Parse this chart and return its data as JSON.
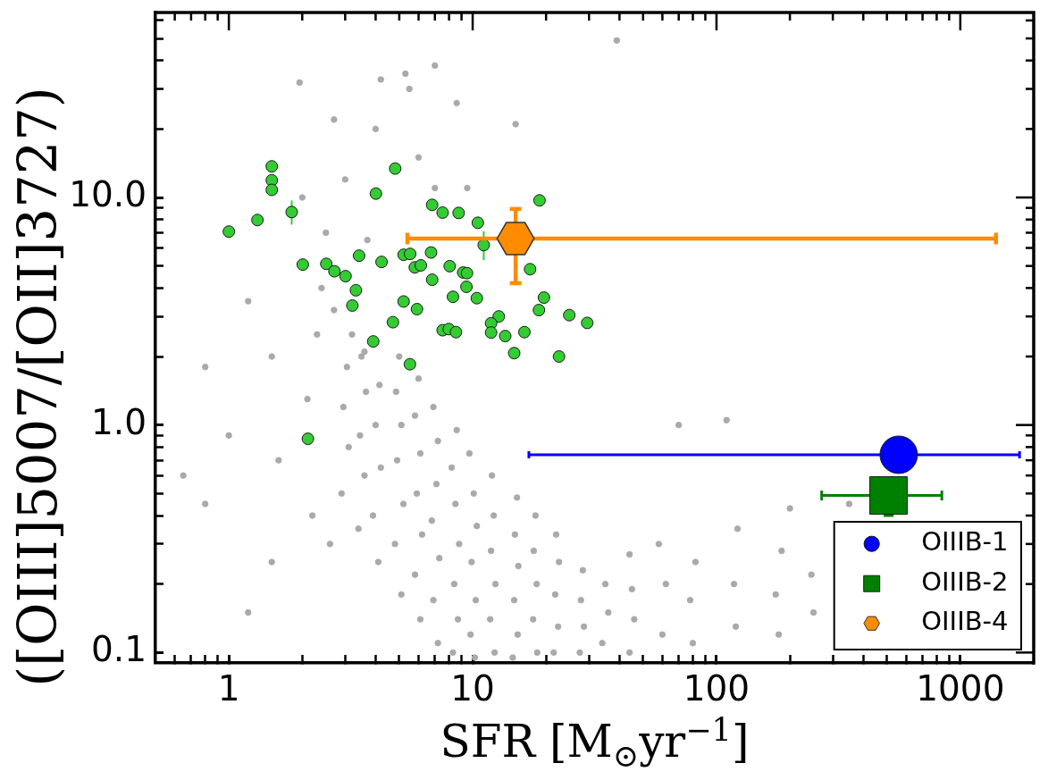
{
  "chart_data": {
    "type": "scatter",
    "xlabel": "SFR [M$_{⊙}$yr$^{−1}$]",
    "ylabel": "([OIII]5007/[OII]3727)",
    "log": "xy",
    "xlim": [
      0.5,
      2000
    ],
    "ylim": [
      0.09,
      65
    ],
    "legend": "bottom right",
    "xticks": [
      {
        "value": 0.6,
        "label": null
      },
      {
        "value": 0.7,
        "label": null
      },
      {
        "value": 0.8,
        "label": null
      },
      {
        "value": 0.9,
        "label": null
      },
      1,
      {
        "value": 2,
        "label": null
      },
      {
        "value": 3,
        "label": null
      },
      {
        "value": 4,
        "label": null
      },
      {
        "value": 5,
        "label": null
      },
      {
        "value": 6,
        "label": null
      },
      {
        "value": 7,
        "label": null
      },
      {
        "value": 8,
        "label": null
      },
      {
        "value": 9,
        "label": null
      },
      10,
      {
        "value": 20,
        "label": null
      },
      {
        "value": 30,
        "label": null
      },
      {
        "value": 40,
        "label": null
      },
      {
        "value": 50,
        "label": null
      },
      {
        "value": 60,
        "label": null
      },
      {
        "value": 70,
        "label": null
      },
      {
        "value": 80,
        "label": null
      },
      {
        "value": 90,
        "label": null
      },
      100,
      {
        "value": 200,
        "label": null
      },
      {
        "value": 300,
        "label": null
      },
      {
        "value": 400,
        "label": null
      },
      {
        "value": 500,
        "label": null
      },
      {
        "value": 600,
        "label": null
      },
      {
        "value": 700,
        "label": null
      },
      {
        "value": 800,
        "label": null
      },
      {
        "value": 900,
        "label": null
      },
      1000
    ],
    "yticks": [
      0.1,
      {
        "value": 0.2,
        "label": null
      },
      {
        "value": 0.3,
        "label": null
      },
      {
        "value": 0.4,
        "label": null
      },
      {
        "value": 0.5,
        "label": null
      },
      {
        "value": 0.6,
        "label": null
      },
      {
        "value": 0.7,
        "label": null
      },
      {
        "value": 0.8,
        "label": null
      },
      {
        "value": 0.9,
        "label": null
      },
      {
        "value": 1,
        "label": "1.0"
      },
      {
        "value": 2,
        "label": null
      },
      {
        "value": 3,
        "label": null
      },
      {
        "value": 4,
        "label": null
      },
      {
        "value": 5,
        "label": null
      },
      {
        "value": 6,
        "label": null
      },
      {
        "value": 7,
        "label": null
      },
      {
        "value": 8,
        "label": null
      },
      {
        "value": 9,
        "label": null
      },
      {
        "value": 10,
        "label": "10.0"
      },
      {
        "value": 20,
        "label": null
      },
      {
        "value": 30,
        "label": null
      },
      {
        "value": 40,
        "label": null
      },
      {
        "value": 50,
        "label": null
      },
      {
        "value": 60,
        "label": null
      }
    ],
    "series": [
      {
        "color": "#aaaaaa",
        "marker": "circle",
        "x": [
          2.9,
          3.1,
          2.95,
          3.05,
          3.2,
          3.4,
          3.6,
          3.45,
          3.65,
          3.5,
          4.1,
          3.9,
          4.2,
          4.0,
          4.15,
          3.6,
          5.1,
          4.8,
          5.2,
          4.9,
          5.1,
          4.85,
          5.0,
          6.1,
          5.8,
          6.2,
          5.9,
          6.1,
          5.8,
          6.0,
          7.2,
          6.9,
          7.3,
          6.8,
          7.1,
          7.2,
          6.9,
          8.3,
          8.7,
          8.4,
          8.8,
          8.5,
          8.2,
          8.6,
          10.2,
          9.8,
          10.3,
          9.9,
          10.4,
          10.1,
          9.7,
          12.3,
          11.8,
          12.4,
          11.9,
          12.2,
          12.0,
          14.6,
          15.3,
          14.8,
          15.4,
          14.9,
          15.2,
          18.4,
          17.7,
          18.3,
          17.8,
          18.1,
          21.5,
          22.4,
          21.8,
          22.6,
          22.0,
          27.5,
          28.6,
          27.8,
          28.3,
          34,
          36,
          35,
          44,
          46,
          45,
          44,
          2.2,
          2.1,
          2.3,
          2.4,
          2.6,
          2.7,
          1.5,
          1.6,
          1.5,
          1.2,
          1.2,
          0.8,
          0.8,
          0.65,
          1.0,
          60,
          62,
          58,
          80,
          78,
          82,
          120,
          118,
          122,
          180,
          175,
          185,
          250,
          245,
          200,
          350,
          70,
          110,
          2.5,
          3,
          4,
          5.5,
          6,
          7,
          9.5,
          3.7,
          2,
          1.95,
          7,
          4.2,
          5.3,
          15,
          8.6,
          2.7,
          39
        ],
        "values": [
          0.5,
          0.8,
          1.2,
          1.8,
          2.5,
          0.35,
          0.6,
          0.9,
          1.4,
          2.0,
          0.25,
          0.4,
          0.65,
          1.0,
          1.5,
          2.1,
          0.18,
          0.3,
          0.45,
          0.7,
          1.0,
          1.4,
          2.0,
          0.14,
          0.22,
          0.33,
          0.5,
          0.75,
          1.1,
          1.6,
          0.11,
          0.17,
          0.26,
          0.38,
          0.55,
          0.85,
          1.2,
          0.1,
          0.14,
          0.2,
          0.3,
          0.45,
          0.65,
          0.95,
          0.095,
          0.12,
          0.17,
          0.25,
          0.36,
          0.5,
          0.75,
          0.1,
          0.14,
          0.2,
          0.28,
          0.4,
          0.6,
          0.095,
          0.12,
          0.17,
          0.24,
          0.33,
          0.48,
          0.1,
          0.14,
          0.2,
          0.28,
          0.4,
          0.1,
          0.13,
          0.18,
          0.25,
          0.33,
          0.1,
          0.13,
          0.17,
          0.23,
          0.11,
          0.15,
          0.2,
          0.1,
          0.14,
          0.19,
          0.27,
          0.4,
          1.3,
          2.5,
          4,
          0.3,
          3.2,
          0.25,
          0.7,
          2,
          0.15,
          3.5,
          0.45,
          1.8,
          0.6,
          0.9,
          0.12,
          0.2,
          0.3,
          0.11,
          0.17,
          0.25,
          0.13,
          0.2,
          0.35,
          0.12,
          0.18,
          0.28,
          0.15,
          0.22,
          0.43,
          0.45,
          1.0,
          1.05,
          7,
          12,
          20,
          30,
          15,
          11,
          11,
          6.5,
          10,
          32,
          38,
          33,
          35,
          21,
          26,
          22,
          49
        ]
      },
      {
        "color": "#33cc33",
        "marker": "circle",
        "x": [
          1.5,
          1.5,
          1.5,
          1.81,
          1.31,
          1.0,
          4.81,
          4.01,
          6.82,
          7.53,
          8.76,
          10.5,
          18.8,
          11.1,
          2.01,
          2.51,
          2.71,
          3.01,
          3.42,
          4.23,
          5.21,
          5.54,
          6.75,
          5.79,
          6.13,
          8.05,
          9.14,
          9.48,
          3.32,
          3.21,
          6.82,
          9.43,
          8.3,
          10.4,
          5.21,
          5.91,
          17.2,
          19.6,
          18.7,
          24.9,
          29.5,
          12.8,
          11.9,
          11.9,
          13.6,
          16.3,
          14.8,
          22.6,
          4.71,
          3.91,
          5.53,
          7.53,
          7.98,
          8.54,
          2.11
        ],
        "values": [
          13.7,
          11.9,
          10.8,
          8.63,
          7.96,
          7.08,
          13.4,
          10.4,
          9.28,
          8.58,
          8.55,
          7.74,
          9.71,
          6.18,
          5.07,
          5.11,
          4.74,
          4.51,
          5.55,
          5.21,
          5.6,
          5.65,
          5.73,
          4.93,
          5.03,
          4.99,
          4.68,
          4.65,
          3.91,
          3.35,
          4.35,
          4.05,
          3.66,
          3.61,
          3.49,
          3.23,
          4.84,
          3.63,
          3.2,
          3.04,
          2.81,
          3.0,
          2.8,
          2.55,
          2.46,
          2.56,
          2.07,
          2.0,
          2.83,
          2.33,
          1.85,
          2.61,
          2.64,
          2.56,
          0.87
        ],
        "errors": [
          null,
          null,
          null,
          [
            7.6,
            9.7
          ],
          null,
          null,
          null,
          null,
          null,
          null,
          null,
          null,
          null,
          [
            5.3,
            7.1
          ],
          null,
          null,
          null,
          null,
          null,
          null,
          null,
          null,
          null,
          null,
          null,
          null,
          null,
          null,
          null,
          null,
          null,
          null,
          null,
          null,
          null,
          null,
          null,
          null,
          null,
          null,
          null,
          null,
          null,
          null,
          null,
          null,
          null,
          null,
          null,
          null,
          null,
          null,
          null,
          null,
          null
        ]
      },
      {
        "name": "OIIIB-1",
        "color": "#0000ff",
        "marker": "circle",
        "x": [
          559
        ],
        "values": [
          0.74
        ],
        "xerrors": [
          [
            17,
            1750
          ]
        ]
      },
      {
        "name": "OIIIB-2",
        "color": "#008000",
        "marker": "square",
        "x": [
          508
        ],
        "values": [
          0.49
        ],
        "errors": [
          [
            0.4,
            0.58
          ]
        ],
        "xerrors": [
          [
            270,
            840
          ]
        ]
      },
      {
        "name": "OIIIB-4",
        "color": "#ff8c00",
        "x": [
          15
        ],
        "values": [
          6.6
        ],
        "errors": [
          [
            4.2,
            8.9
          ]
        ],
        "xerrors": [
          [
            5.4,
            1400
          ]
        ]
      }
    ]
  }
}
